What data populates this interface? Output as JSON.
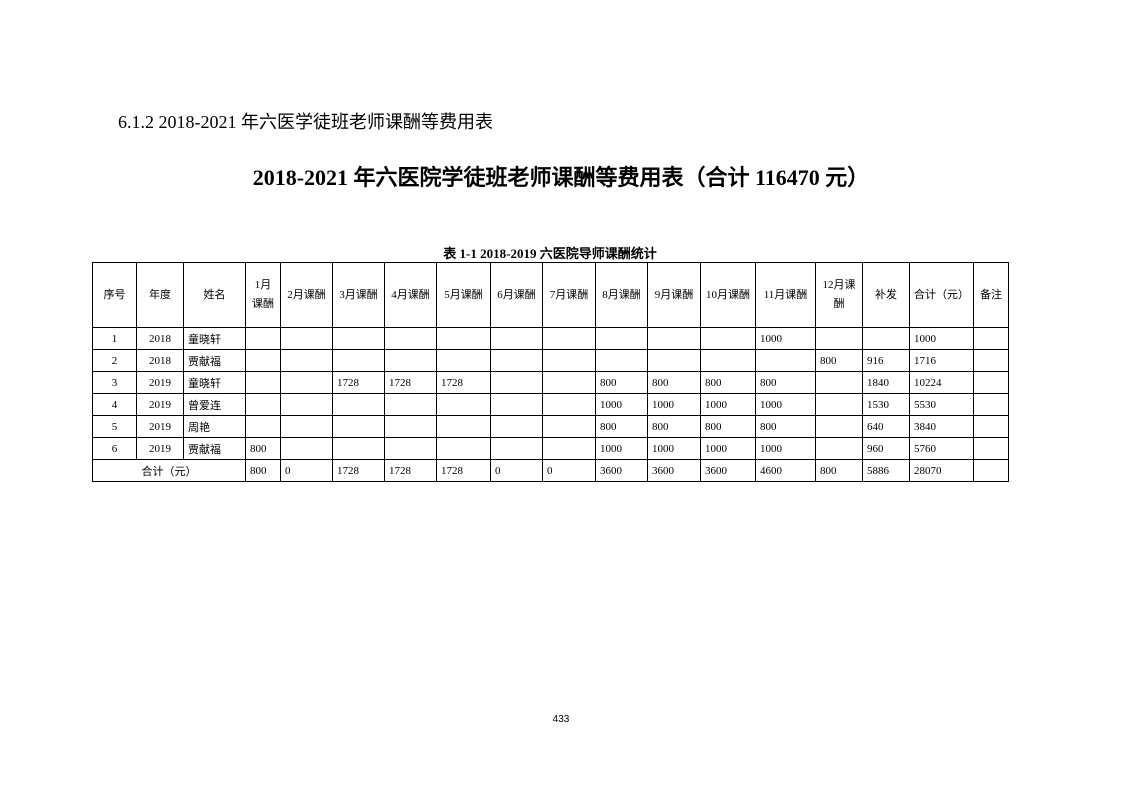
{
  "section_heading": "6.1.2  2018-2021 年六医学徒班老师课酬等费用表",
  "main_title": "2018-2021 年六医院学徒班老师课酬等费用表（合计 116470 元）",
  "table_caption": "表 1-1   2018-2019 六医院导师课酬统计",
  "headers": [
    "序号",
    "年度",
    "姓名",
    "1月课酬",
    "2月课酬",
    "3月课酬",
    "4月课酬",
    "5月课酬",
    "6月课酬",
    "7月课酬",
    "8月课酬",
    "9月课酬",
    "10月课酬",
    "11月课酬",
    "12月课酬",
    "补发",
    "合计（元）",
    "备注"
  ],
  "rows": [
    [
      "1",
      "2018",
      "童晓轩",
      "",
      "",
      "",
      "",
      "",
      "",
      "",
      "",
      "",
      "",
      "1000",
      "",
      "",
      "1000",
      ""
    ],
    [
      "2",
      "2018",
      "贾献福",
      "",
      "",
      "",
      "",
      "",
      "",
      "",
      "",
      "",
      "",
      "",
      "800",
      "916",
      "1716",
      ""
    ],
    [
      "3",
      "2019",
      "童晓轩",
      "",
      "",
      "1728",
      "1728",
      "1728",
      "",
      "",
      "800",
      "800",
      "800",
      "800",
      "",
      "1840",
      "10224",
      ""
    ],
    [
      "4",
      "2019",
      "曾爱连",
      "",
      "",
      "",
      "",
      "",
      "",
      "",
      "1000",
      "1000",
      "1000",
      "1000",
      "",
      "1530",
      "5530",
      ""
    ],
    [
      "5",
      "2019",
      "周艳",
      "",
      "",
      "",
      "",
      "",
      "",
      "",
      "800",
      "800",
      "800",
      "800",
      "",
      "640",
      "3840",
      ""
    ],
    [
      "6",
      "2019",
      "贾献福",
      "800",
      "",
      "",
      "",
      "",
      "",
      "",
      "1000",
      "1000",
      "1000",
      "1000",
      "",
      "960",
      "5760",
      ""
    ]
  ],
  "total_row": {
    "label": "合计（元）",
    "values": [
      "800",
      "0",
      "1728",
      "1728",
      "1728",
      "0",
      "0",
      "3600",
      "3600",
      "3600",
      "4600",
      "800",
      "5886",
      "28070",
      ""
    ]
  },
  "page_number": "433"
}
